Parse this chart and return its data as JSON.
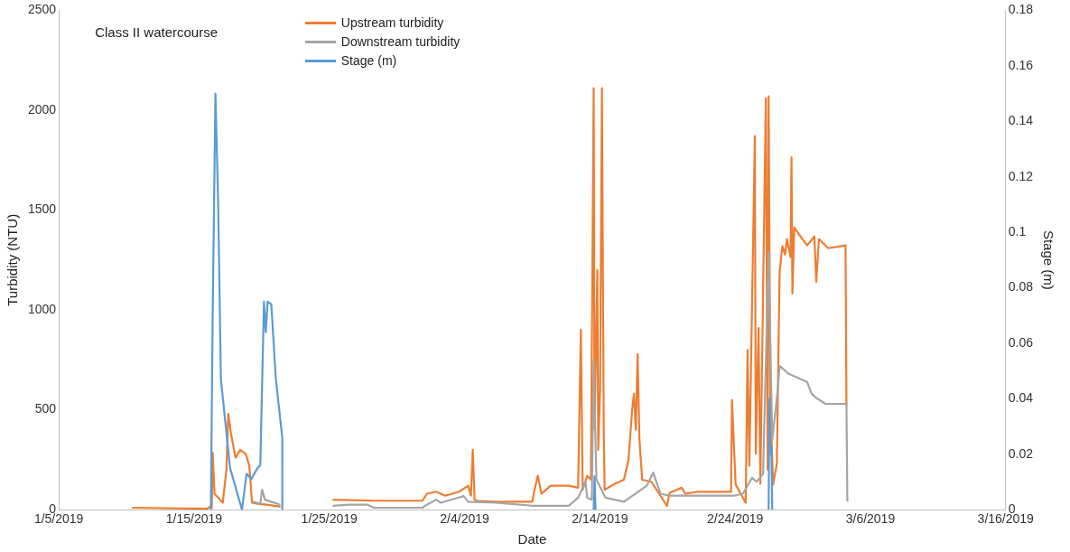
{
  "chart_data": {
    "type": "line",
    "title": "Class II watercourse",
    "xlabel": "Date",
    "ylabel": "Turbidity (NTU)",
    "y2label": "Stage (m)",
    "xlim": [
      "2019-01-05",
      "2019-03-16"
    ],
    "xticks": [
      {
        "value": "2019-01-05",
        "label": "1/5/2019"
      },
      {
        "value": "2019-01-15",
        "label": "1/15/2019"
      },
      {
        "value": "2019-01-25",
        "label": "1/25/2019"
      },
      {
        "value": "2019-02-04",
        "label": "2/4/2019"
      },
      {
        "value": "2019-02-14",
        "label": "2/14/2019"
      },
      {
        "value": "2019-02-24",
        "label": "2/24/2019"
      },
      {
        "value": "2019-03-06",
        "label": "3/6/2019"
      },
      {
        "value": "2019-03-16",
        "label": "3/16/2019"
      }
    ],
    "ylim": [
      0,
      2500
    ],
    "yticks": [
      0,
      500,
      1000,
      1500,
      2000,
      2500
    ],
    "y2lim": [
      0,
      0.18
    ],
    "y2ticks": [
      0,
      0.02,
      0.04,
      0.06,
      0.08,
      0.1,
      0.12,
      0.14,
      0.16,
      0.18
    ],
    "grid": false,
    "legend": "top",
    "marker": "none",
    "line_style": "solid",
    "series": [
      {
        "name": "Upstream turbidity",
        "color": "#ed7d31",
        "x": [
          "2019-01-10T10:00",
          "2019-01-15T23:15",
          "2019-01-16T04:00",
          "2019-01-16T07:24",
          "2019-01-16T09:00",
          "2019-01-16T12:15",
          "2019-01-17T02:52",
          "2019-01-17T09:22",
          "2019-01-17T12:37",
          "2019-01-17T17:30",
          "2019-01-18T01:37",
          "2019-01-18T09:45",
          "2019-01-18T19:30",
          "2019-01-19T02:00",
          "2019-01-19T06:52",
          "2019-01-19T16:37",
          "2019-01-20T08:52",
          "2019-01-21T09:15",
          "2019-01-23T00:00",
          "2019-01-25T05:52",
          "2019-01-28T11:52",
          "2019-01-31T21:07",
          "2019-02-01T05:15",
          "2019-02-01T21:30",
          "2019-02-02T13:45",
          "2019-02-03T14:07",
          "2019-02-04T06:22",
          "2019-02-04T11:15",
          "2019-02-04T14:30",
          "2019-02-04T17:45",
          "2019-02-04T21:00",
          "2019-02-06T07:07",
          "2019-02-08T07:52",
          "2019-02-09T00:07",
          "2019-02-09T03:22",
          "2019-02-09T09:52",
          "2019-02-09T16:22",
          "2019-02-10T08:37",
          "2019-02-11T17:07",
          "2019-02-12T09:22",
          "2019-02-12T14:15",
          "2019-02-12T17:30",
          "2019-02-13T01:37",
          "2019-02-13T08:07",
          "2019-02-13T13:00",
          "2019-02-13T14:37",
          "2019-02-13T19:30",
          "2019-02-13T21:07",
          "2019-02-14T00:22",
          "2019-02-14T03:37",
          "2019-02-14T06:52",
          "2019-02-14T08:30",
          "2019-02-15T02:22",
          "2019-02-15T18:37",
          "2019-02-16T02:45",
          "2019-02-16T09:15",
          "2019-02-16T12:30",
          "2019-02-16T15:45",
          "2019-02-16T19:00",
          "2019-02-16T22:15",
          "2019-02-17T03:07",
          "2019-02-17T19:22",
          "2019-02-18T23:00",
          "2019-02-19T03:52",
          "2019-02-20T01:00",
          "2019-02-20T07:30",
          "2019-02-21T04:37",
          "2019-02-23T16:45",
          "2019-02-23T18:22",
          "2019-02-24T00:52",
          "2019-02-24T18:45",
          "2019-02-24T22:00",
          "2019-02-25T01:15",
          "2019-02-25T11:00",
          "2019-02-25T12:37",
          "2019-02-25T17:30",
          "2019-02-25T20:45",
          "2019-02-26T06:30",
          "2019-02-26T09:45",
          "2019-02-26T11:22",
          "2019-02-26T14:37",
          "2019-02-26T19:30",
          "2019-02-27T02:00",
          "2019-02-27T06:52",
          "2019-02-27T11:45",
          "2019-02-27T16:37",
          "2019-02-27T19:52",
          "2019-02-28T02:22",
          "2019-02-28T04:00",
          "2019-02-28T05:37",
          "2019-02-28T08:52",
          "2019-02-28T15:22",
          "2019-03-01T07:37",
          "2019-03-01T20:37",
          "2019-03-01T23:52",
          "2019-03-02T04:45",
          "2019-03-02T21:00",
          "2019-03-04T03:52",
          "2019-03-04T05:30"
        ],
        "values": [
          10,
          5,
          15,
          10,
          285,
          80,
          35,
          200,
          480,
          380,
          260,
          300,
          280,
          220,
          35,
          30,
          25,
          15,
          null,
          50,
          45,
          45,
          80,
          90,
          70,
          90,
          120,
          70,
          300,
          50,
          45,
          40,
          40,
          40,
          90,
          170,
          80,
          120,
          120,
          110,
          900,
          100,
          170,
          150,
          2110,
          400,
          1200,
          300,
          600,
          2110,
          400,
          100,
          130,
          150,
          250,
          500,
          580,
          400,
          780,
          350,
          150,
          140,
          20,
          85,
          110,
          80,
          90,
          90,
          550,
          127,
          35,
          800,
          220,
          1870,
          280,
          910,
          130,
          2060,
          200,
          2070,
          500,
          127,
          230,
          1186,
          1320,
          1277,
          1355,
          1264,
          1764,
          1082,
          1414,
          1386,
          1323,
          1368,
          1141,
          1355,
          1309,
          1323,
          523
        ]
      },
      {
        "name": "Downstream turbidity",
        "color": "#a5a5a5",
        "x": [
          "2019-01-19T08:30",
          "2019-01-19T21:30",
          "2019-01-20T00:45",
          "2019-01-20T05:37",
          "2019-01-20T17:00",
          "2019-01-21T09:15",
          "2019-01-23T00:00",
          "2019-01-25T05:52",
          "2019-01-26T11:07",
          "2019-01-27T19:37",
          "2019-01-28T07:00",
          "2019-01-31T21:07",
          "2019-02-01T02:00",
          "2019-02-01T21:30",
          "2019-02-02T05:37",
          "2019-02-03T22:15",
          "2019-02-04T06:22",
          "2019-02-06T07:07",
          "2019-02-09T00:07",
          "2019-02-11T17:07",
          "2019-02-12T09:22",
          "2019-02-12T22:22",
          "2019-02-13T01:37",
          "2019-02-13T09:45",
          "2019-02-13T13:00",
          "2019-02-13T17:52",
          "2019-02-14T10:07",
          "2019-02-15T18:37",
          "2019-02-17T11:15",
          "2019-02-17T22:37",
          "2019-02-18T11:37",
          "2019-02-19T03:52",
          "2019-02-22T13:07",
          "2019-02-23T21:37",
          "2019-02-24T13:52",
          "2019-02-25T06:07",
          "2019-02-25T14:15",
          "2019-02-26T01:37",
          "2019-02-26T11:22",
          "2019-02-26T17:52",
          "2019-02-27T03:37",
          "2019-02-27T06:52",
          "2019-02-27T23:07",
          "2019-02-28T15:22",
          "2019-03-01T07:37",
          "2019-03-01T15:45",
          "2019-03-01T23:52",
          "2019-03-02T16:07",
          "2019-03-04T05:30",
          "2019-03-04T07:07"
        ],
        "values": [
          40,
          30,
          100,
          50,
          40,
          25,
          null,
          20,
          25,
          25,
          10,
          10,
          20,
          50,
          35,
          68,
          40,
          35,
          20,
          20,
          60,
          140,
          60,
          50,
          750,
          150,
          60,
          40,
          120,
          186,
          80,
          70,
          70,
          70,
          80,
          160,
          140,
          180,
          1290,
          350,
          600,
          720,
          680,
          660,
          640,
          580,
          560,
          530,
          530,
          40
        ]
      },
      {
        "name": "Stage (m)",
        "color": "#5b9bd5",
        "axis": "y2",
        "x": [
          "2019-01-16T05:45",
          "2019-01-16T09:00",
          "2019-01-16T13:52",
          "2019-01-16T18:45",
          "2019-01-16T23:37",
          "2019-01-17T15:52",
          "2019-01-18T13:00",
          "2019-01-18T21:07",
          "2019-01-19T05:15",
          "2019-01-19T16:37",
          "2019-01-19T21:30",
          "2019-01-20T04:00",
          "2019-01-20T07:15",
          "2019-01-20T10:30",
          "2019-01-20T17:00",
          "2019-01-21T01:07",
          "2019-01-21T12:30",
          "2019-01-21T12:31",
          "2019-02-01T00:00",
          "2019-02-13T13:00",
          "2019-02-13T14:37",
          "2019-02-13T16:15",
          "2019-02-20T00:00",
          "2019-02-26T11:22",
          "2019-02-26T13:00",
          "2019-02-26T14:37",
          "2019-02-26T16:15",
          "2019-02-26T17:52"
        ],
        "values": [
          0,
          0.07,
          0.15,
          0.11,
          0.047,
          0.015,
          0,
          0.013,
          0.011,
          0.015,
          0.016,
          0.075,
          0.064,
          0.075,
          0.074,
          0.047,
          0.026,
          0,
          null,
          0,
          0.012,
          0,
          null,
          0,
          0.04,
          0.02,
          0.023,
          0
        ]
      }
    ]
  }
}
